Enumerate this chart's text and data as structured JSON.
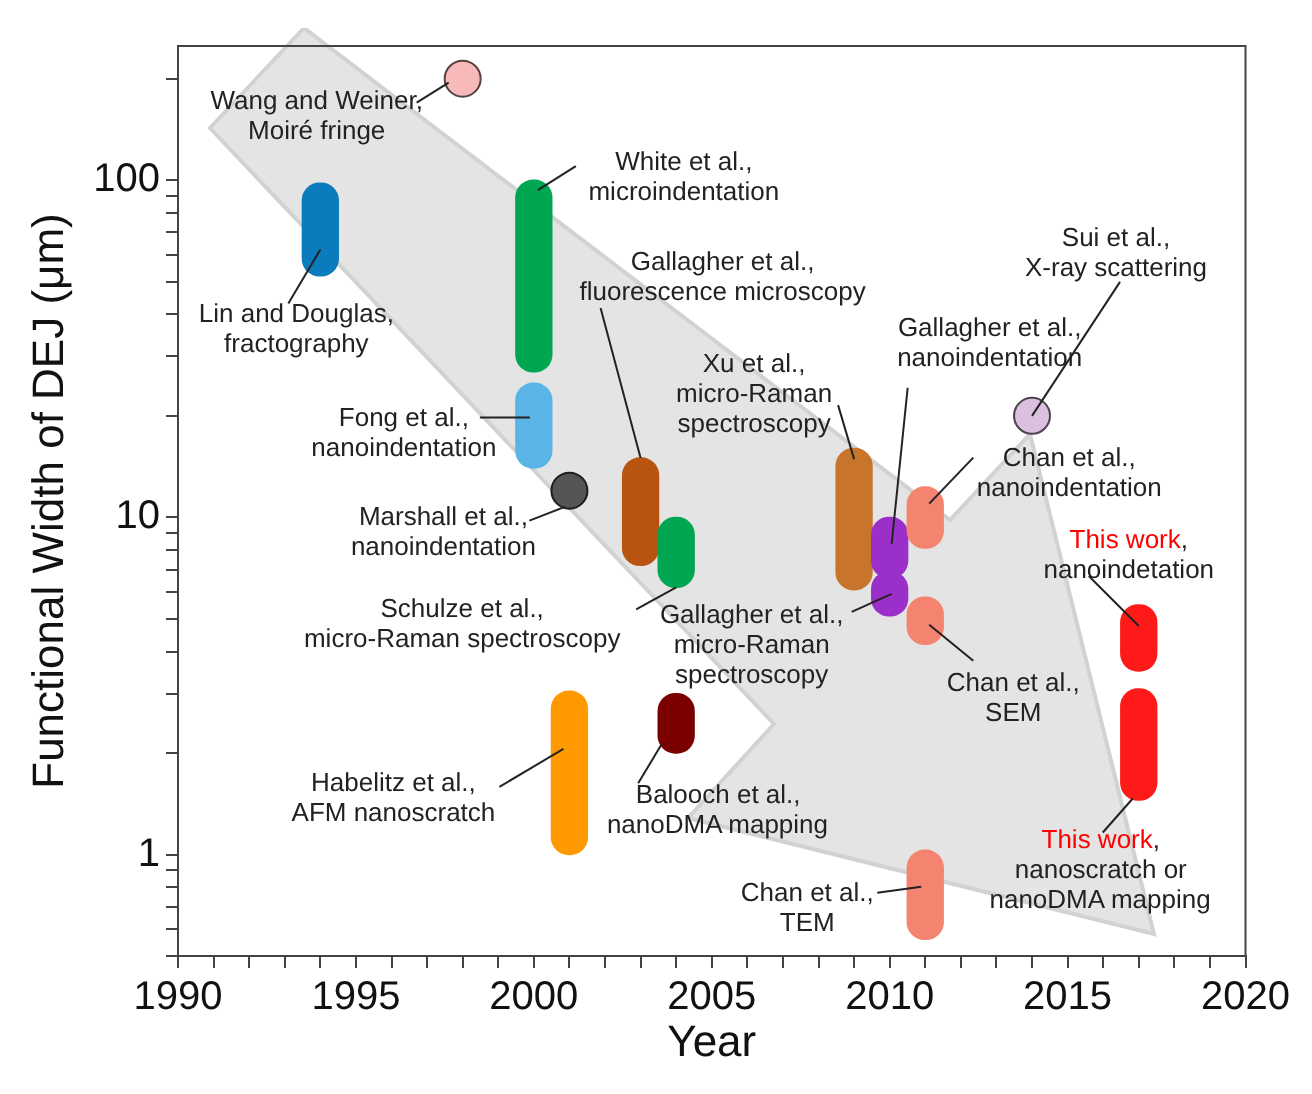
{
  "chart_data": {
    "type": "bar",
    "xlabel": "Year",
    "ylabel": "Functional Width of DEJ (μm)",
    "series": [
      {
        "x": [
          1994,
          2000,
          2001,
          2003,
          2004,
          2009,
          2010,
          2011,
          2017
        ],
        "base": [
          52,
          27,
          1.0,
          7.2,
          6.2,
          6.1,
          6.6,
          8.1,
          3.5
        ],
        "values": [
          46,
          73,
          2.05,
          7.8,
          3.8,
          9.9,
          3.4,
          4.2,
          2
        ],
        "colors": [
          "#0a7bbd",
          "#00a651",
          "#ff9900",
          "#b85410",
          "#00a651",
          "#c8742a",
          "#9b2fc9",
          "#f4836f",
          "#ff1a1a"
        ]
      },
      {
        "x": [
          2000,
          2004,
          2010,
          2011,
          2017
        ],
        "base": [
          14,
          2.0,
          5.1,
          4.2,
          1.45
        ],
        "values": [
          11,
          1.0,
          1.8,
          1.6,
          1.65
        ],
        "colors": [
          "#5ab4e5",
          "#7a0000",
          "#9b2fc9",
          "#f4836f",
          "#ff1a1a"
        ]
      },
      {
        "x": [
          2011
        ],
        "base": [
          0.56
        ],
        "values": [
          0.47
        ],
        "colors": [
          "#f4836f"
        ]
      },
      {
        "type": "scatter",
        "x": [
          1998,
          2001,
          2014
        ],
        "values": [
          200,
          12,
          20
        ],
        "colors": [
          "#f7b9b9",
          "#555555",
          "#dcc0e0"
        ],
        "marker": "circle"
      }
    ],
    "log": "y",
    "xlim": [
      1990,
      2020
    ],
    "xticks": [
      1990,
      {
        "value": 1991,
        "label": null
      },
      {
        "value": 1992,
        "label": null
      },
      {
        "value": 1993,
        "label": null
      },
      {
        "value": 1994,
        "label": null
      },
      1995,
      {
        "value": 1996,
        "label": null
      },
      {
        "value": 1997,
        "label": null
      },
      {
        "value": 1998,
        "label": null
      },
      {
        "value": 1999,
        "label": null
      },
      2000,
      {
        "value": 2001,
        "label": null
      },
      {
        "value": 2002,
        "label": null
      },
      {
        "value": 2003,
        "label": null
      },
      {
        "value": 2004,
        "label": null
      },
      2005,
      {
        "value": 2006,
        "label": null
      },
      {
        "value": 2007,
        "label": null
      },
      {
        "value": 2008,
        "label": null
      },
      {
        "value": 2009,
        "label": null
      },
      2010,
      {
        "value": 2011,
        "label": null
      },
      {
        "value": 2012,
        "label": null
      },
      {
        "value": 2013,
        "label": null
      },
      {
        "value": 2014,
        "label": null
      },
      2015,
      {
        "value": 2016,
        "label": null
      },
      {
        "value": 2017,
        "label": null
      },
      {
        "value": 2018,
        "label": null
      },
      {
        "value": 2019,
        "label": null
      },
      2020
    ],
    "ylim": [
      0.5,
      250
    ],
    "yticks": [
      {
        "value": 0.5,
        "label": null
      },
      {
        "value": 0.6,
        "label": null
      },
      {
        "value": 0.7,
        "label": null
      },
      {
        "value": 0.8,
        "label": null
      },
      {
        "value": 0.9,
        "label": null
      },
      1,
      {
        "value": 2,
        "label": null
      },
      {
        "value": 3,
        "label": null
      },
      {
        "value": 4,
        "label": null
      },
      {
        "value": 5,
        "label": null
      },
      {
        "value": 6,
        "label": null
      },
      {
        "value": 7,
        "label": null
      },
      {
        "value": 8,
        "label": null
      },
      {
        "value": 9,
        "label": null
      },
      10,
      {
        "value": 20,
        "label": null
      },
      {
        "value": 30,
        "label": null
      },
      {
        "value": 40,
        "label": null
      },
      {
        "value": 50,
        "label": null
      },
      {
        "value": 60,
        "label": null
      },
      {
        "value": 70,
        "label": null
      },
      {
        "value": 80,
        "label": null
      },
      {
        "value": 90,
        "label": null
      },
      100,
      {
        "value": 200,
        "label": null
      }
    ],
    "annotations": [
      "Wang and Weiner,\nMoiré fringe",
      "White et al.,\nmicroindentation",
      "Lin and Douglas,\nfractography",
      {
        "text": "Gallagher et al.,\nfluorescence microscopy",
        "x": 2003,
        "y": 15
      },
      "Fong et al.,\nnanoindentation",
      "Marshall et al.,\nnanoindentation",
      "Xu et al.,\nmicro-Raman\nspectroscopy",
      "Gallagher et al.,\nnanoindentation",
      {
        "text": "Sui et al.,\nX-ray scattering",
        "x": 2014,
        "y": 20
      },
      "Chan et al.,\nnanoindentation",
      "This work,\nnanoindetation",
      {
        "text": "Schulze et al.,\nmicro-Raman spectroscopy",
        "x": 2004,
        "y": 6.2
      },
      "Gallagher et al.,\nmicro-Raman\nspectroscopy",
      "Chan et al.,\nSEM",
      "Habelitz et al.,\nAFM nanoscratch",
      "Balooch et al.,\nnanoDMA mapping",
      "Chan et al.,\nTEM",
      "This work,\nnanoscratch or\nnanoDMA mapping"
    ]
  }
}
